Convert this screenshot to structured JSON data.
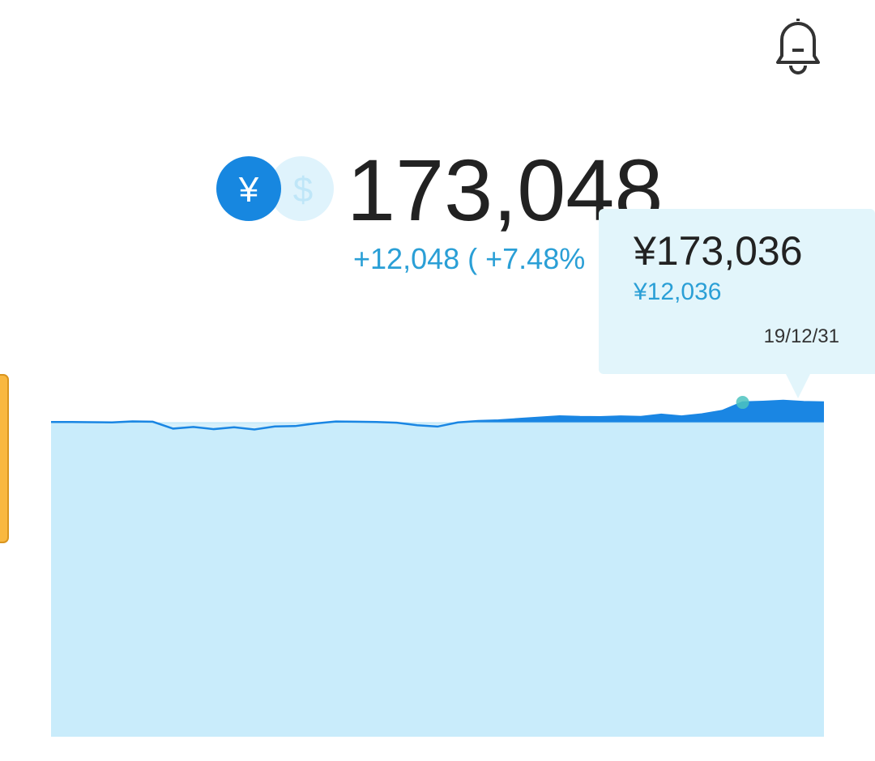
{
  "header": {
    "currency_options": [
      "¥",
      "$"
    ],
    "total": "173,048",
    "change": "+12,048 ( +7.48%"
  },
  "tooltip": {
    "amount": "¥173,036",
    "gain": "¥12,036",
    "date": "19/12/31"
  },
  "chart_data": {
    "type": "area",
    "values": [
      161400,
      161400,
      161300,
      161200,
      161800,
      161600,
      157500,
      158500,
      157200,
      158300,
      157000,
      158800,
      159000,
      160600,
      161700,
      161600,
      161400,
      161000,
      159500,
      158700,
      161200,
      162000,
      162400,
      163200,
      164000,
      164800,
      164400,
      164300,
      164700,
      164400,
      165800,
      164700,
      166000,
      168000,
      173036,
      173400,
      174000,
      173300,
      173048
    ],
    "principal": 161000,
    "ylim": [
      -25000,
      186000
    ],
    "selected_index": 34,
    "color": "#1a86e3",
    "fill": "#c9ecfb"
  }
}
